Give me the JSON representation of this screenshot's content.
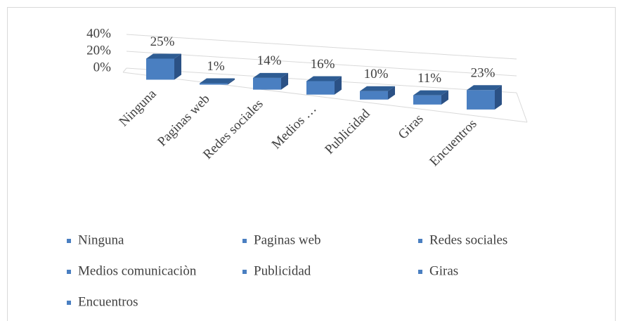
{
  "chart_data": {
    "type": "bar3d",
    "categories": [
      "Ninguna",
      "Paginas web",
      "Redes sociales",
      "Medios comunicaciòn",
      "Publicidad",
      "Giras",
      "Encuentros"
    ],
    "category_axis_labels": [
      "Ninguna",
      "Paginas web",
      "Redes sociales",
      "Medios …",
      "Publicidad",
      "Giras",
      "Encuentros"
    ],
    "values": [
      25,
      1,
      14,
      16,
      10,
      11,
      23
    ],
    "value_labels": [
      "25%",
      "1%",
      "14%",
      "16%",
      "10%",
      "11%",
      "23%"
    ],
    "color": "#4a7fc1",
    "ylim": [
      0,
      40
    ],
    "yticks": [
      {
        "value": 0,
        "label": "0%"
      },
      {
        "value": 20,
        "label": "20%"
      },
      {
        "value": 40,
        "label": "40%"
      }
    ],
    "grid": true,
    "legend": "bottom"
  }
}
